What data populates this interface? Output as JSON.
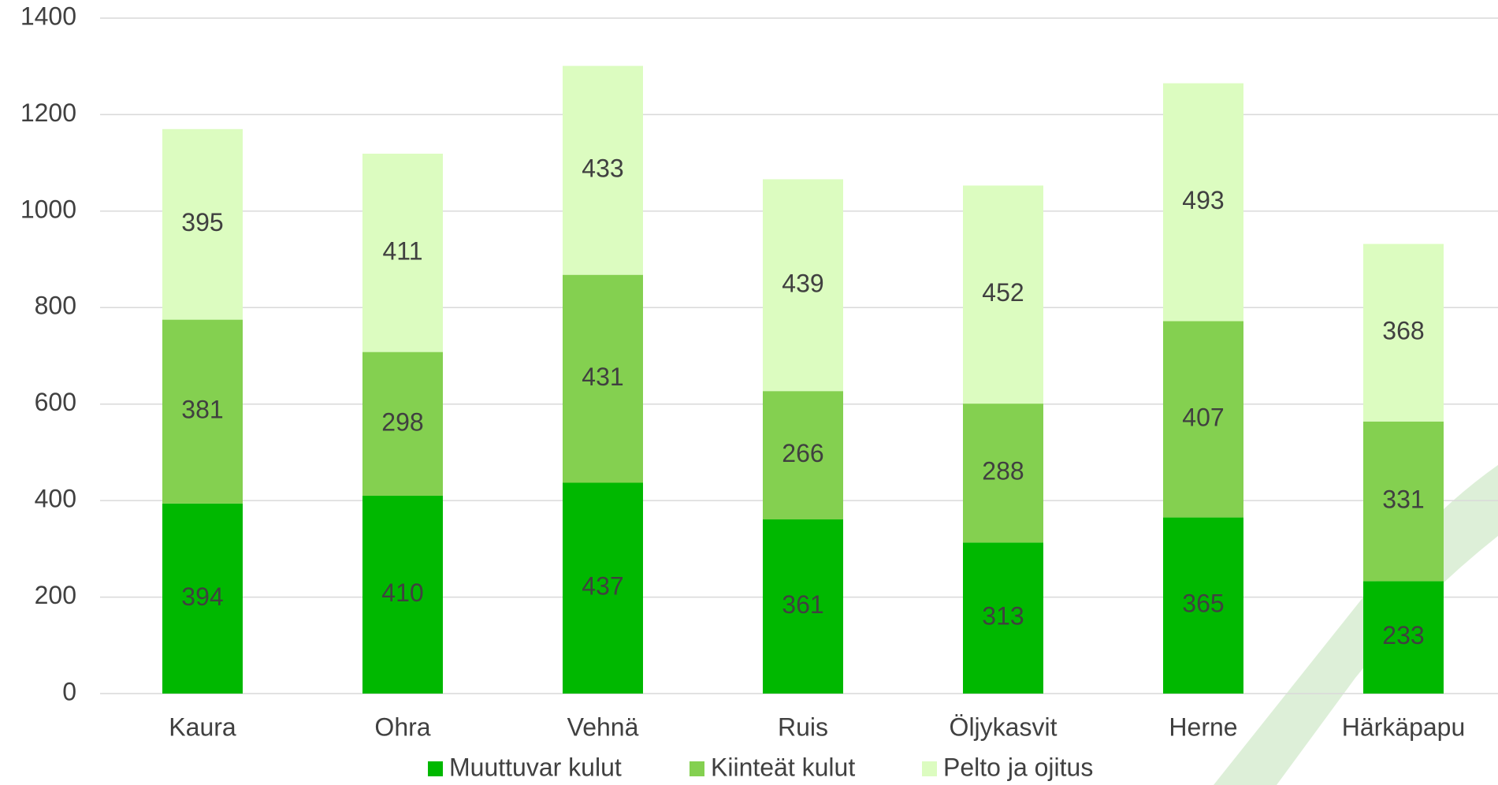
{
  "chart_data": {
    "type": "stacked_bar",
    "categories": [
      "Kaura",
      "Ohra",
      "Vehnä",
      "Ruis",
      "Öljykasvit",
      "Herne",
      "Härkäpapu"
    ],
    "series": [
      {
        "name": "Muuttuvar kulut",
        "color": "#00b800",
        "values": [
          394,
          410,
          437,
          361,
          313,
          365,
          233
        ]
      },
      {
        "name": "Kiinteät kulut",
        "color": "#84d050",
        "values": [
          381,
          298,
          431,
          266,
          288,
          407,
          331
        ]
      },
      {
        "name": "Pelto ja ojitus",
        "color": "#dcfcc0",
        "values": [
          395,
          411,
          433,
          439,
          452,
          493,
          368
        ]
      }
    ],
    "ylim": [
      0,
      1400
    ],
    "yticks": [
      0,
      200,
      400,
      600,
      800,
      1000,
      1200,
      1400
    ],
    "grid": true
  }
}
